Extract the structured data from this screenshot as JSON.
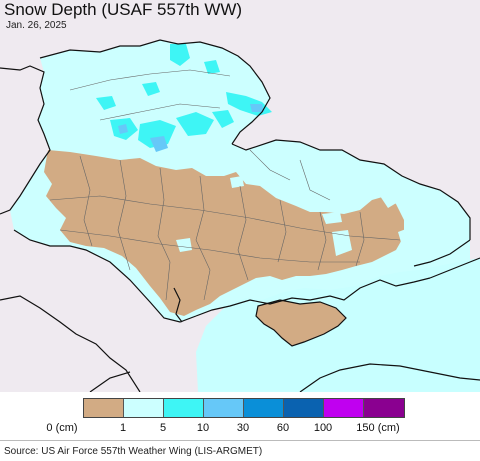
{
  "map": {
    "title": "Snow Depth (USAF 557th WW)",
    "date": "Jan. 26, 2025"
  },
  "legend": {
    "labels": [
      "0 (cm)",
      "1",
      "5",
      "10",
      "30",
      "60",
      "100",
      "150 (cm)"
    ],
    "colors": [
      "#d2ab84",
      "#ccffff",
      "#3ef5f5",
      "#66c8f8",
      "#0a8fd8",
      "#0a62b0",
      "#c000f0",
      "#8a0090"
    ]
  },
  "colors": {
    "background_land": "#efeaf0",
    "sea": "#c8ffff",
    "no_snow": "#d2ab84",
    "light_snow": "#ccffff",
    "medium_snow": "#3ef5f5",
    "deep_snow": "#66c8f8"
  },
  "footer": {
    "source": "Source: US Air Force 557th Weather Wing (LIS-ARGMET)"
  }
}
